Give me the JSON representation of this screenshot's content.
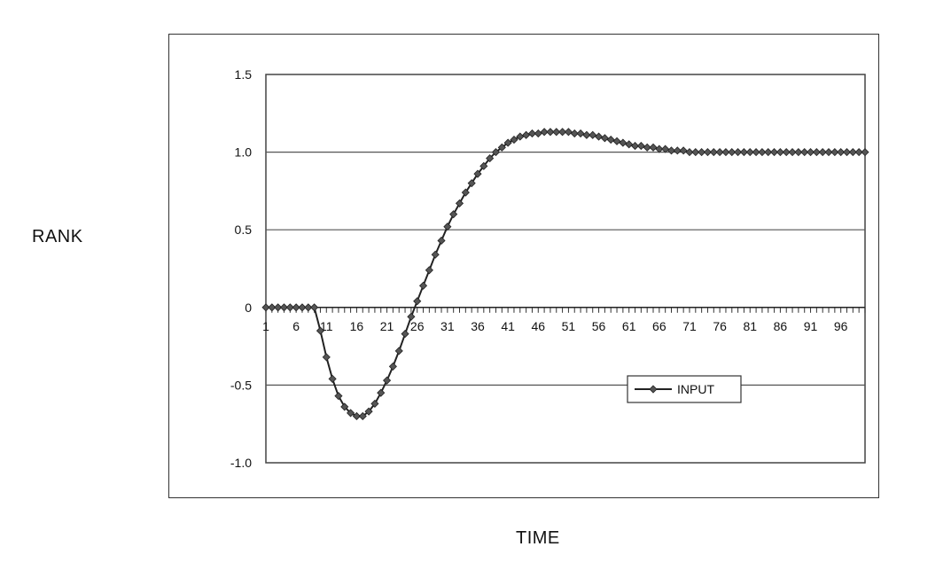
{
  "chart_data": {
    "type": "line",
    "title": "",
    "xlabel": "TIME",
    "ylabel": "RANK",
    "ylim": [
      -1.0,
      1.5
    ],
    "xlim": [
      1,
      100
    ],
    "ytick_labels": [
      "1.5",
      "1.0",
      "0.5",
      "0",
      "-0.5",
      "-1.0"
    ],
    "ytick_values": [
      1.5,
      1.0,
      0.5,
      0,
      -0.5,
      -1.0
    ],
    "xtick_labels": [
      "1",
      "6",
      "11",
      "16",
      "21",
      "26",
      "31",
      "36",
      "41",
      "46",
      "51",
      "56",
      "61",
      "66",
      "71",
      "76",
      "81",
      "86",
      "91",
      "96"
    ],
    "xtick_values": [
      1,
      6,
      11,
      16,
      21,
      26,
      31,
      36,
      41,
      46,
      51,
      56,
      61,
      66,
      71,
      76,
      81,
      86,
      91,
      96
    ],
    "grid": true,
    "legend_position": "lower-right",
    "series": [
      {
        "name": "INPUT",
        "color": "#222222",
        "x": [
          1,
          2,
          3,
          4,
          5,
          6,
          7,
          8,
          9,
          10,
          11,
          12,
          13,
          14,
          15,
          16,
          17,
          18,
          19,
          20,
          21,
          22,
          23,
          24,
          25,
          26,
          27,
          28,
          29,
          30,
          31,
          32,
          33,
          34,
          35,
          36,
          37,
          38,
          39,
          40,
          41,
          42,
          43,
          44,
          45,
          46,
          47,
          48,
          49,
          50,
          51,
          52,
          53,
          54,
          55,
          56,
          57,
          58,
          59,
          60,
          61,
          62,
          63,
          64,
          65,
          66,
          67,
          68,
          69,
          70,
          71,
          72,
          73,
          74,
          75,
          76,
          77,
          78,
          79,
          80,
          81,
          82,
          83,
          84,
          85,
          86,
          87,
          88,
          89,
          90,
          91,
          92,
          93,
          94,
          95,
          96,
          97,
          98,
          99,
          100
        ],
        "values": [
          0,
          0,
          0,
          0,
          0,
          0,
          0,
          0,
          0,
          -0.15,
          -0.32,
          -0.46,
          -0.57,
          -0.64,
          -0.68,
          -0.7,
          -0.7,
          -0.67,
          -0.62,
          -0.55,
          -0.47,
          -0.38,
          -0.28,
          -0.17,
          -0.06,
          0.04,
          0.14,
          0.24,
          0.34,
          0.43,
          0.52,
          0.6,
          0.67,
          0.74,
          0.8,
          0.86,
          0.91,
          0.96,
          1.0,
          1.03,
          1.06,
          1.08,
          1.1,
          1.11,
          1.12,
          1.12,
          1.13,
          1.13,
          1.13,
          1.13,
          1.13,
          1.12,
          1.12,
          1.11,
          1.11,
          1.1,
          1.09,
          1.08,
          1.07,
          1.06,
          1.05,
          1.04,
          1.04,
          1.03,
          1.03,
          1.02,
          1.02,
          1.01,
          1.01,
          1.01,
          1.0,
          1.0,
          1.0,
          1.0,
          1.0,
          1.0,
          1.0,
          1.0,
          1.0,
          1.0,
          1.0,
          1.0,
          1.0,
          1.0,
          1.0,
          1.0,
          1.0,
          1.0,
          1.0,
          1.0,
          1.0,
          1.0,
          1.0,
          1.0,
          1.0,
          1.0,
          1.0,
          1.0,
          1.0,
          1.0
        ]
      }
    ]
  }
}
